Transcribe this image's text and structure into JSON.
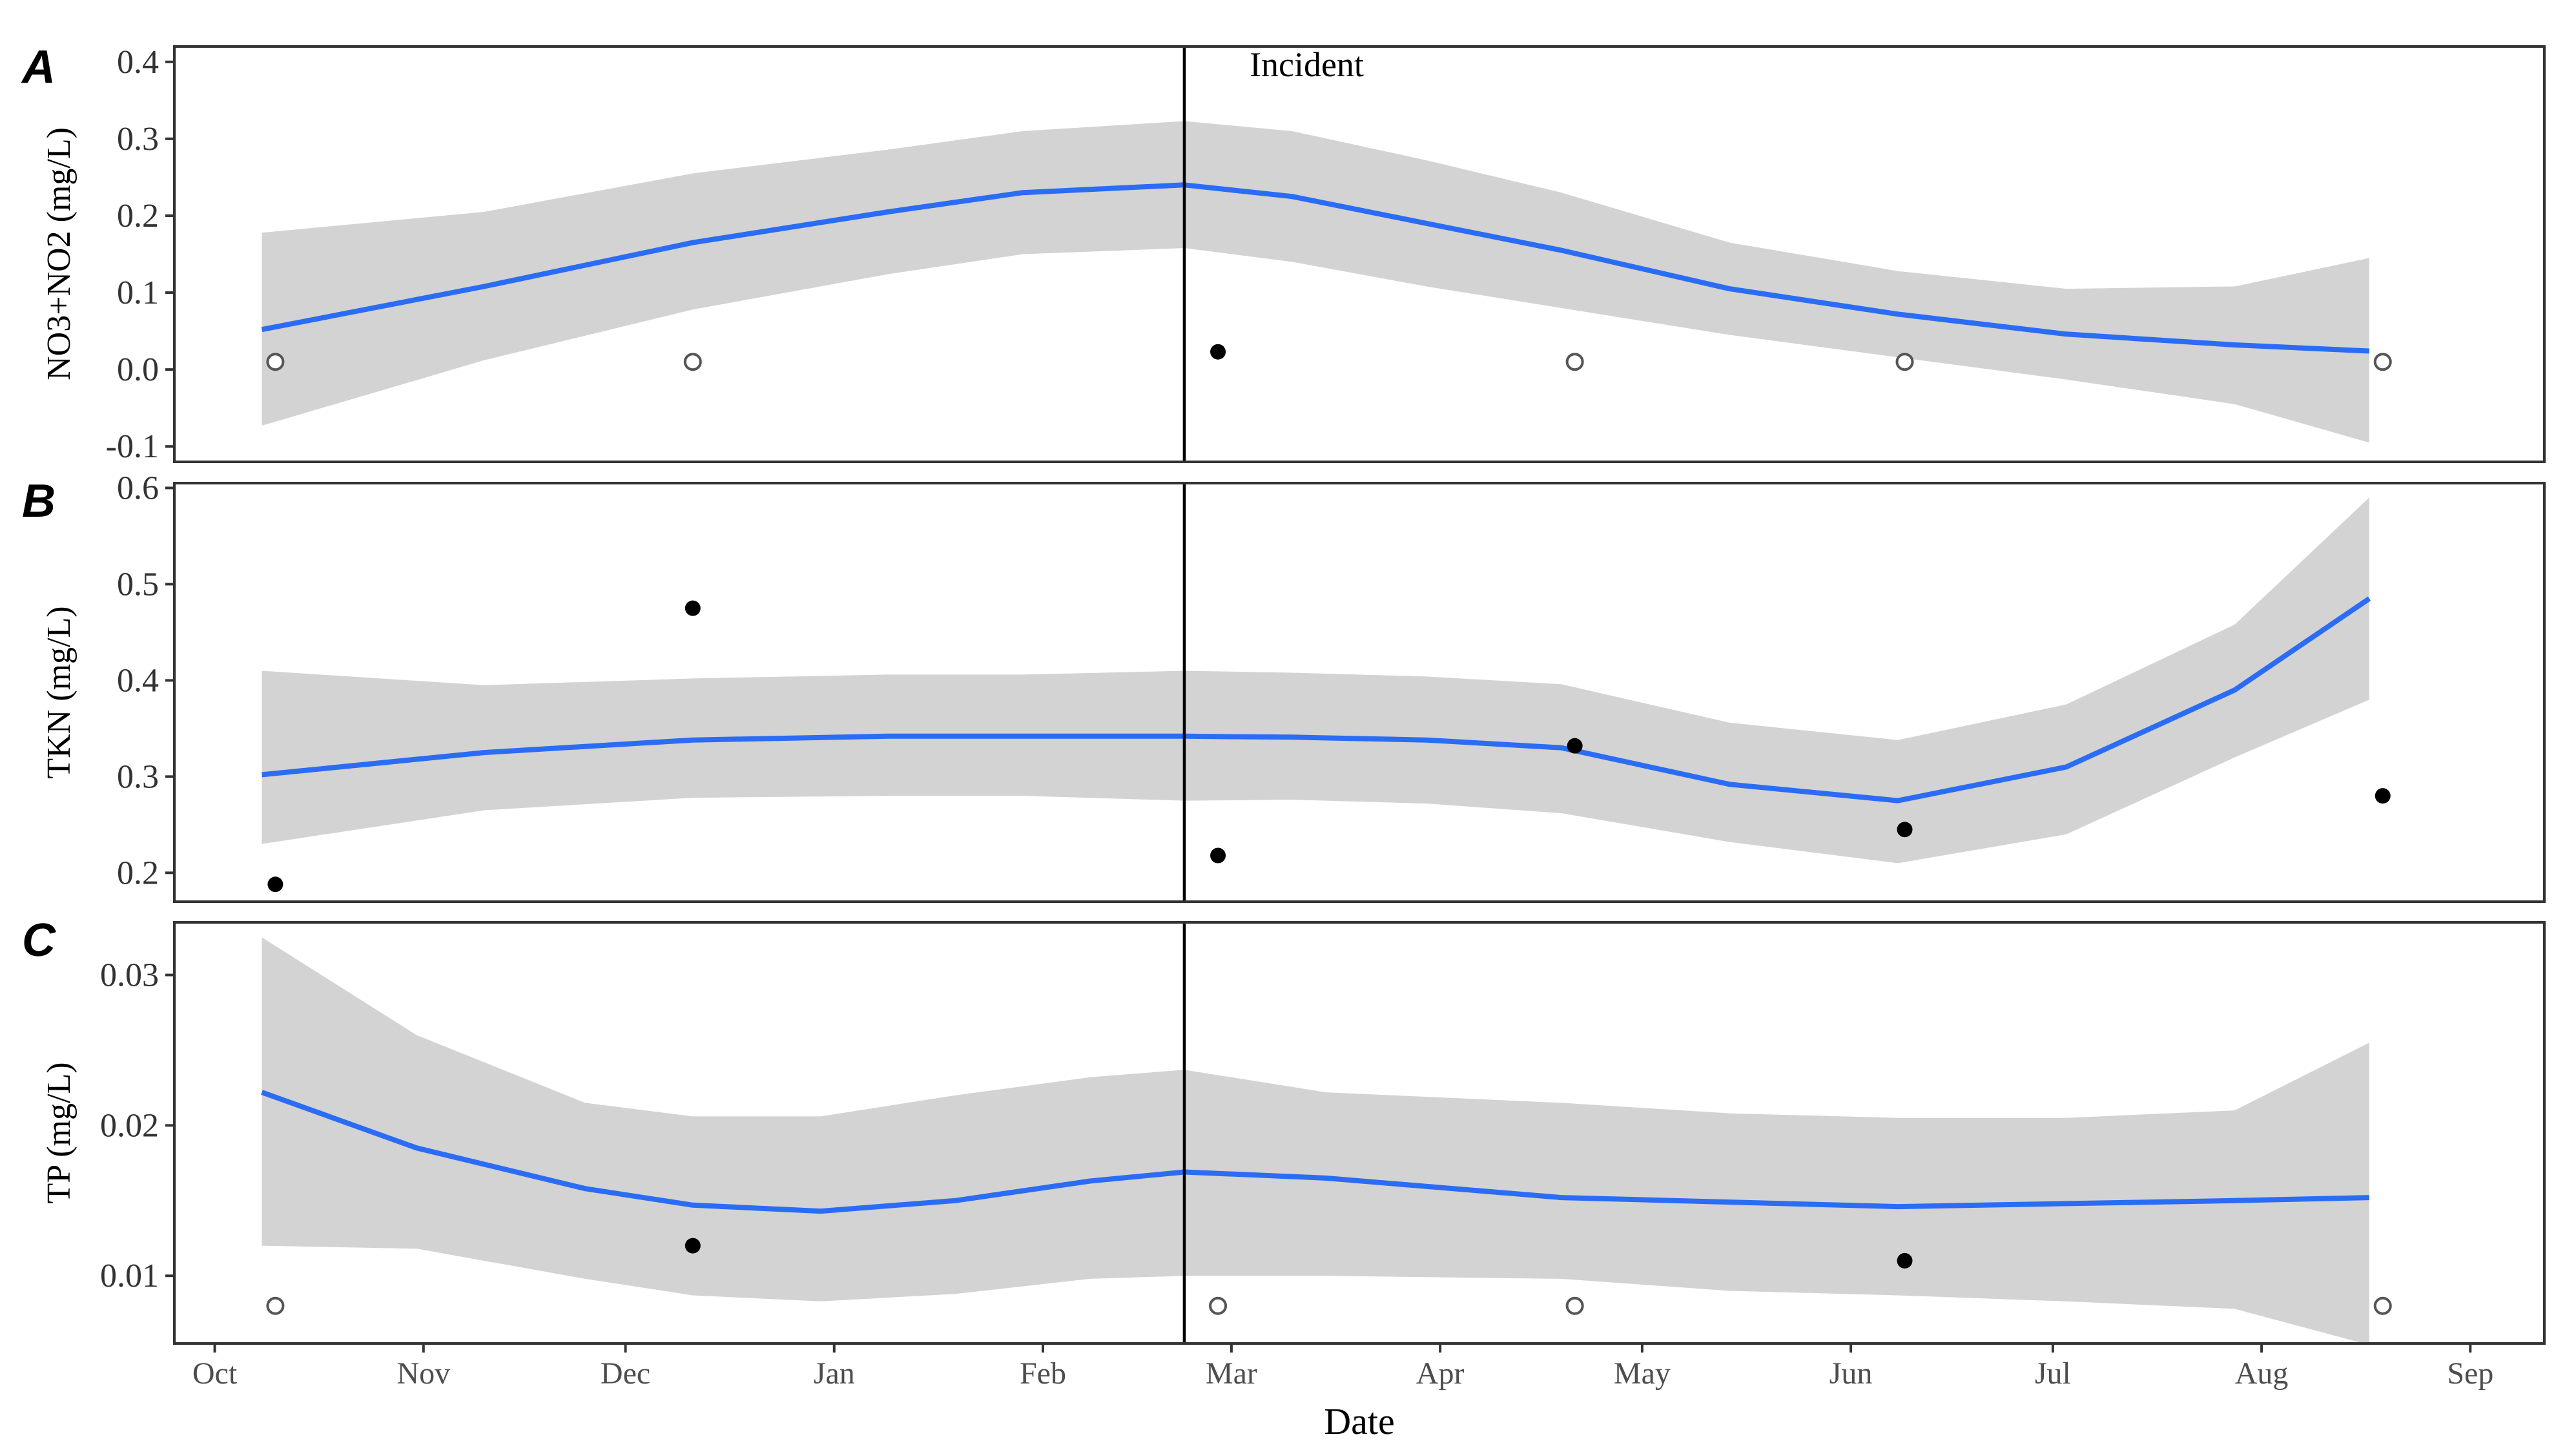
{
  "chart_data": [
    {
      "type": "line",
      "panel_label": "A",
      "ylabel": "NO3+NO2 (mg/L)",
      "ylim": [
        -0.12,
        0.42
      ],
      "y_ticks": [
        -0.1,
        0.0,
        0.1,
        0.2,
        0.3,
        0.4
      ],
      "y_tick_labels": [
        "-0.1",
        "0.0",
        "0.1",
        "0.2",
        "0.3",
        "0.4"
      ],
      "annotation": "Incident",
      "points": [
        {
          "x": 9,
          "y": 0.01,
          "filled": false
        },
        {
          "x": 71,
          "y": 0.01,
          "filled": false
        },
        {
          "x": 149,
          "y": 0.023,
          "filled": true
        },
        {
          "x": 202,
          "y": 0.01,
          "filled": false
        },
        {
          "x": 251,
          "y": 0.01,
          "filled": false
        },
        {
          "x": 322,
          "y": 0.01,
          "filled": false
        }
      ],
      "fit": {
        "x": [
          7,
          40,
          71,
          100,
          120,
          144,
          160,
          180,
          200,
          225,
          250,
          275,
          300,
          320
        ],
        "y": [
          0.052,
          0.108,
          0.165,
          0.205,
          0.23,
          0.24,
          0.225,
          0.19,
          0.155,
          0.105,
          0.072,
          0.046,
          0.032,
          0.024
        ],
        "lower": [
          -0.073,
          0.012,
          0.078,
          0.124,
          0.15,
          0.158,
          0.14,
          0.108,
          0.08,
          0.045,
          0.016,
          -0.013,
          -0.045,
          -0.095
        ],
        "upper": [
          0.178,
          0.205,
          0.255,
          0.286,
          0.31,
          0.323,
          0.31,
          0.272,
          0.23,
          0.165,
          0.128,
          0.105,
          0.108,
          0.145
        ]
      }
    },
    {
      "type": "line",
      "panel_label": "B",
      "ylabel": "TKN (mg/L)",
      "ylim": [
        0.17,
        0.605
      ],
      "y_ticks": [
        0.2,
        0.3,
        0.4,
        0.5,
        0.6
      ],
      "y_tick_labels": [
        "0.2",
        "0.3",
        "0.4",
        "0.5",
        "0.6"
      ],
      "points": [
        {
          "x": 9,
          "y": 0.188,
          "filled": true
        },
        {
          "x": 71,
          "y": 0.475,
          "filled": true
        },
        {
          "x": 149,
          "y": 0.218,
          "filled": true
        },
        {
          "x": 202,
          "y": 0.332,
          "filled": true
        },
        {
          "x": 251,
          "y": 0.245,
          "filled": true
        },
        {
          "x": 322,
          "y": 0.28,
          "filled": true
        }
      ],
      "fit": {
        "x": [
          7,
          40,
          71,
          100,
          120,
          144,
          160,
          180,
          200,
          225,
          250,
          275,
          300,
          320
        ],
        "y": [
          0.302,
          0.325,
          0.338,
          0.342,
          0.342,
          0.342,
          0.341,
          0.338,
          0.33,
          0.292,
          0.275,
          0.31,
          0.39,
          0.485
        ],
        "lower": [
          0.23,
          0.265,
          0.278,
          0.28,
          0.28,
          0.275,
          0.276,
          0.272,
          0.262,
          0.232,
          0.21,
          0.24,
          0.32,
          0.38
        ],
        "upper": [
          0.41,
          0.395,
          0.402,
          0.406,
          0.406,
          0.41,
          0.408,
          0.404,
          0.396,
          0.356,
          0.338,
          0.375,
          0.458,
          0.59
        ]
      }
    },
    {
      "type": "line",
      "panel_label": "C",
      "ylabel": "TP (mg/L)",
      "ylim": [
        0.0055,
        0.0335
      ],
      "y_ticks": [
        0.01,
        0.02,
        0.03
      ],
      "y_tick_labels": [
        "0.01",
        "0.02",
        "0.03"
      ],
      "points": [
        {
          "x": 9,
          "y": 0.008,
          "filled": false
        },
        {
          "x": 71,
          "y": 0.012,
          "filled": true
        },
        {
          "x": 149,
          "y": 0.008,
          "filled": false
        },
        {
          "x": 202,
          "y": 0.008,
          "filled": false
        },
        {
          "x": 251,
          "y": 0.011,
          "filled": true
        },
        {
          "x": 322,
          "y": 0.008,
          "filled": false
        }
      ],
      "fit": {
        "x": [
          7,
          30,
          55,
          71,
          90,
          110,
          130,
          144,
          165,
          200,
          225,
          250,
          275,
          300,
          320
        ],
        "y": [
          0.0222,
          0.0185,
          0.0158,
          0.0147,
          0.0143,
          0.015,
          0.0163,
          0.0169,
          0.0165,
          0.0152,
          0.0149,
          0.0146,
          0.0148,
          0.015,
          0.0152
        ],
        "lower": [
          0.012,
          0.0118,
          0.0098,
          0.0087,
          0.0083,
          0.0088,
          0.0098,
          0.01,
          0.01,
          0.0098,
          0.009,
          0.0087,
          0.0083,
          0.0078,
          0.0054
        ],
        "upper": [
          0.0325,
          0.026,
          0.0215,
          0.0206,
          0.0206,
          0.022,
          0.0232,
          0.0237,
          0.0222,
          0.0215,
          0.0208,
          0.0205,
          0.0205,
          0.021,
          0.0255
        ]
      }
    }
  ],
  "x_axis": {
    "title": "Date",
    "domain": [
      -6,
      346
    ],
    "tick_positions": [
      0,
      31,
      61,
      92,
      123,
      151,
      182,
      212,
      243,
      273,
      304,
      335
    ],
    "tick_labels": [
      "Oct",
      "Nov",
      "Dec",
      "Jan",
      "Feb",
      "Mar",
      "Apr",
      "May",
      "Jun",
      "Jul",
      "Aug",
      "Sep"
    ],
    "incident_x": 144
  },
  "colors": {
    "fit_line": "#2b6cf5",
    "confidence_band": "#d3d3d3",
    "points": "#000000",
    "incident_line": "#000000"
  }
}
